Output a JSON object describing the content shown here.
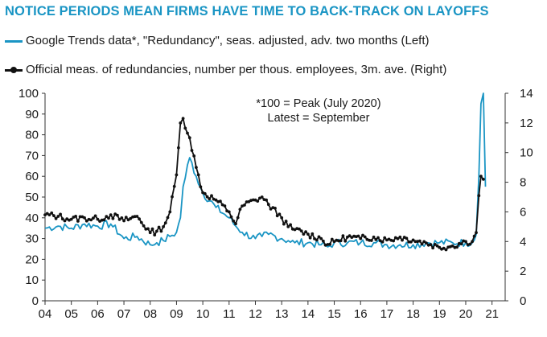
{
  "header": {
    "title": "NOTICE PERIODS MEAN FIRMS HAVE TIME TO BACK-TRACK ON LAYOFFS"
  },
  "colors": {
    "google": "#1a95c4",
    "official": "#111111",
    "title": "#1a95c4"
  },
  "chart_data": {
    "type": "line",
    "title": "NOTICE PERIODS MEAN FIRMS HAVE TIME TO BACK-TRACK ON LAYOFFS",
    "annotation": [
      "*100 = Peak (July 2020)",
      "Latest = September"
    ],
    "x": [
      2004,
      2004.5,
      2005,
      2005.5,
      2006,
      2006.5,
      2007,
      2007.5,
      2008,
      2008.25,
      2008.5,
      2008.75,
      2009,
      2009.15,
      2009.25,
      2009.5,
      2009.75,
      2010,
      2010.5,
      2011,
      2011.25,
      2011.5,
      2012,
      2012.25,
      2012.5,
      2013,
      2013.25,
      2013.5,
      2014,
      2014.5,
      2014.75,
      2015,
      2015.5,
      2016,
      2016.5,
      2017,
      2017.5,
      2018,
      2018.5,
      2019,
      2019.5,
      2020,
      2020.25,
      2020.4,
      2020.5,
      2020.58,
      2020.67,
      2020.75
    ],
    "x_ticks": [
      "04",
      "05",
      "06",
      "07",
      "08",
      "09",
      "10",
      "11",
      "12",
      "13",
      "14",
      "15",
      "16",
      "17",
      "18",
      "19",
      "20",
      "21"
    ],
    "xlim": [
      2004,
      2021.5
    ],
    "series": [
      {
        "name": "Google Trends data*, \"Redundancy\", seas. adjusted, adv. two months (Left)",
        "axis": "left",
        "values": [
          35,
          36,
          35,
          37,
          36,
          37,
          30,
          31,
          27,
          28,
          29,
          31,
          33,
          40,
          55,
          69,
          60,
          52,
          45,
          40,
          36,
          33,
          30,
          31,
          32,
          30,
          29,
          28,
          28,
          27,
          26,
          28,
          28,
          28,
          28,
          27,
          27,
          27,
          28,
          28,
          28,
          28,
          28,
          32,
          60,
          95,
          100,
          55
        ]
      },
      {
        "name": "Official meas. of redundancies, number per thous. employees, 3m. ave. (Right)",
        "axis": "right",
        "values": [
          5.8,
          5.7,
          5.5,
          5.6,
          5.5,
          5.8,
          5.4,
          5.7,
          4.6,
          4.7,
          5.0,
          6.0,
          8.5,
          12.0,
          12.3,
          11.0,
          9.0,
          7.3,
          6.8,
          6.0,
          5.2,
          6.4,
          6.8,
          7.0,
          6.5,
          5.6,
          5.0,
          4.8,
          4.5,
          4.2,
          3.8,
          4.0,
          4.3,
          4.2,
          4.3,
          4.1,
          4.3,
          4.1,
          3.9,
          3.6,
          3.7,
          4.0,
          4.0,
          4.6,
          7.1,
          8.4,
          8.2,
          null
        ]
      }
    ],
    "left_axis": {
      "ylim": [
        0,
        100
      ],
      "ticks": [
        "0",
        "10",
        "20",
        "30",
        "40",
        "50",
        "60",
        "70",
        "80",
        "90",
        "100"
      ]
    },
    "right_axis": {
      "ylim": [
        0,
        14
      ],
      "ticks": [
        "0",
        "2",
        "4",
        "6",
        "8",
        "10",
        "12",
        "14"
      ]
    },
    "xlabel": "",
    "ylabel": ""
  }
}
